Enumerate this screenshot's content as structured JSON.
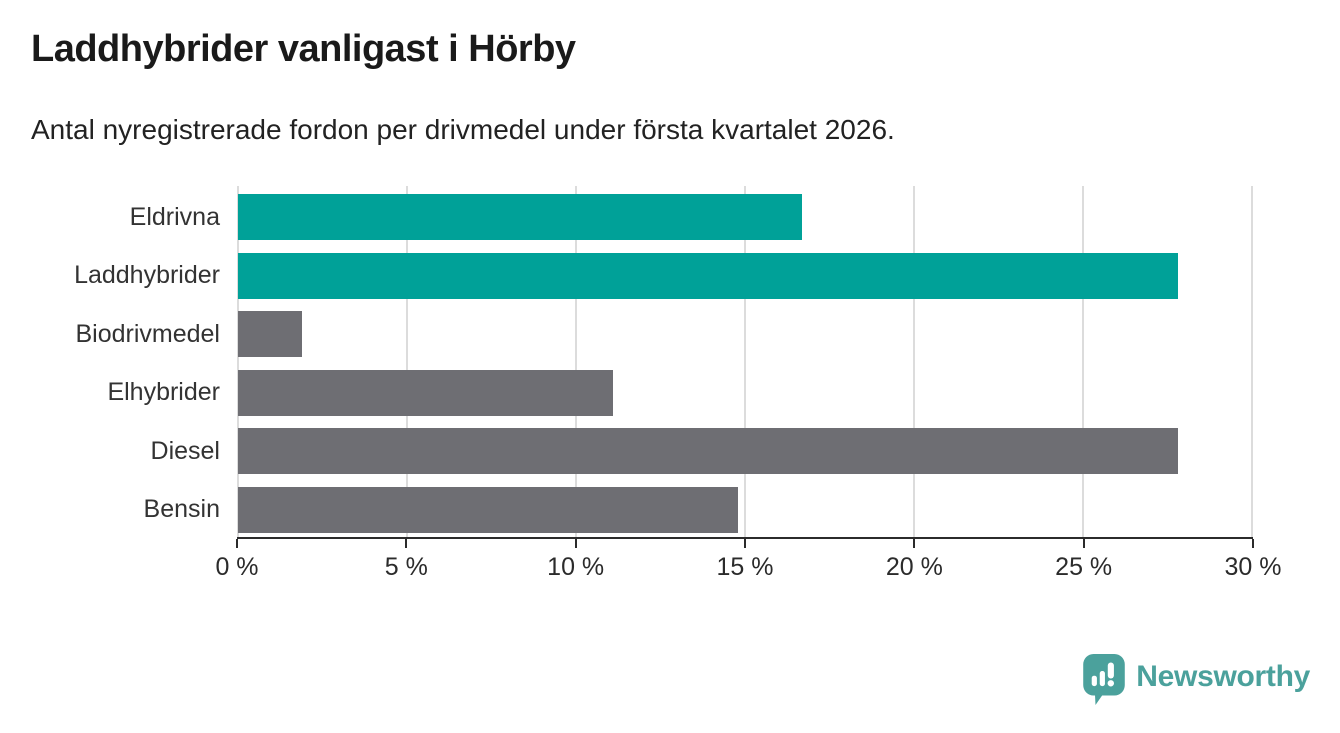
{
  "header": {
    "title": "Laddhybrider vanligast i Hörby",
    "subtitle": "Antal nyregistrerade fordon per drivmedel under första kvartalet 2026."
  },
  "chart_data": {
    "type": "bar",
    "orientation": "horizontal",
    "title": "Laddhybrider vanligast i Hörby",
    "subtitle": "Antal nyregistrerade fordon per drivmedel under första kvartalet 2026.",
    "categories": [
      "Eldrivna",
      "Laddhybrider",
      "Biodrivmedel",
      "Elhybrider",
      "Diesel",
      "Bensin"
    ],
    "values": [
      16.7,
      27.8,
      1.9,
      11.1,
      27.8,
      14.8
    ],
    "unit": "%",
    "xlim": [
      0,
      30
    ],
    "x_ticks": [
      {
        "value": 0,
        "label": "0 %"
      },
      {
        "value": 5,
        "label": "5 %"
      },
      {
        "value": 10,
        "label": "10 %"
      },
      {
        "value": 15,
        "label": "15 %"
      },
      {
        "value": 20,
        "label": "20 %"
      },
      {
        "value": 25,
        "label": "25 %"
      },
      {
        "value": 30,
        "label": "30 %"
      }
    ],
    "bar_colors": [
      "#00a198",
      "#00a198",
      "#6e6e73",
      "#6e6e73",
      "#6e6e73",
      "#6e6e73"
    ],
    "highlight_color": "#00a198",
    "default_color": "#6e6e73",
    "gridline_color": "#dcdcdc",
    "axis_color": "#2b2b2b",
    "grid": "vertical",
    "legend": "none",
    "value_labels": "none"
  },
  "branding": {
    "wordmark": "Newsworthy",
    "color": "#4ba19c",
    "icon": "newsworthy-speech-bubble-bar-chart-icon"
  }
}
